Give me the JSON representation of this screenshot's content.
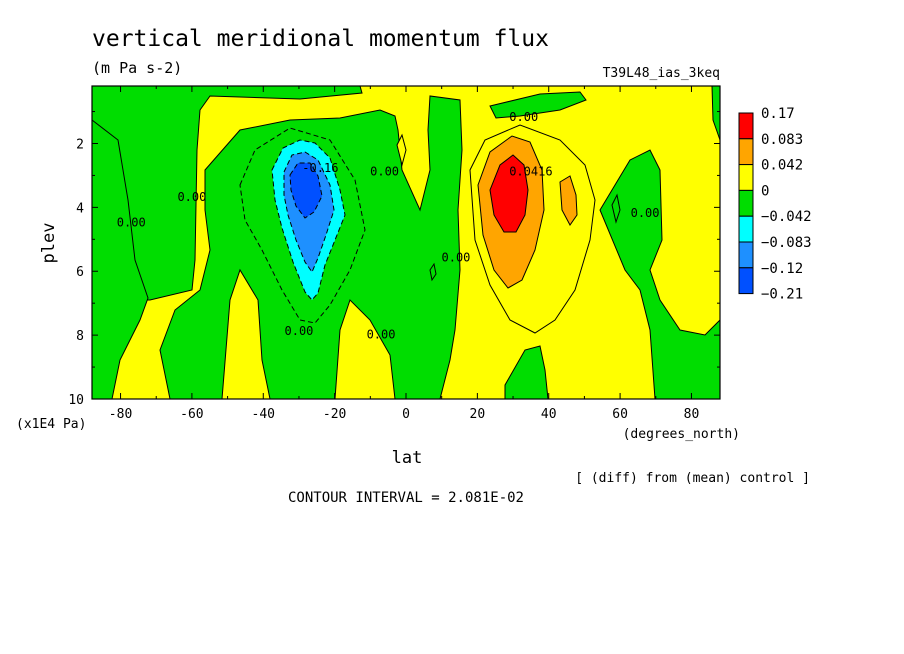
{
  "header": {
    "title": "vertical meridional momentum flux",
    "units": "(m Pa s-2)",
    "run": "T39L48_ias_3keq"
  },
  "footer": {
    "diff_note": "[ (diff) from (mean) control ]",
    "contour_interval": "CONTOUR INTERVAL = 2.081E-02"
  },
  "chart_data": {
    "type": "heatmap",
    "title": "vertical meridional momentum flux",
    "subtitle": "(m Pa s-2)",
    "xlabel": "lat",
    "xunits": "(degrees_north)",
    "ylabel": "plev",
    "yunits": "(x1E4 Pa)",
    "xlim": [
      -88,
      88
    ],
    "ylim": [
      10,
      0.2
    ],
    "xticks": [
      -80,
      -60,
      -40,
      -20,
      0,
      20,
      40,
      60,
      80
    ],
    "yticks": [
      2,
      4,
      6,
      8,
      10
    ],
    "colors": {
      "strong_pos": "#ff0000",
      "mid_pos": "#ffa500",
      "weak_pos": "#ffff00",
      "weak_neg": "#00dd00",
      "mid_neg": "#00ffff",
      "strong_neg": "#1e90ff",
      "very_strong_neg": "#0050ff"
    },
    "legend": {
      "placement": "right",
      "levels": [
        "0.17",
        "0.083",
        "0.042",
        "0",
        "−0.042",
        "−0.083",
        "−0.12",
        "−0.21"
      ],
      "colors": [
        "#ff0000",
        "#ffa500",
        "#ffff00",
        "#00dd00",
        "#00ffff",
        "#1e90ff",
        "#0050ff"
      ]
    },
    "contour_labels": [
      {
        "text": "0.00",
        "lat": 33,
        "plev": 1.3
      },
      {
        "text": "0.0416",
        "lat": 35,
        "plev": 3.0
      },
      {
        "text": "-0.16",
        "lat": -24,
        "plev": 2.9
      },
      {
        "text": "0.00",
        "lat": -6,
        "plev": 3.0
      },
      {
        "text": "0.00",
        "lat": -60,
        "plev": 3.8
      },
      {
        "text": "0.00",
        "lat": -77,
        "plev": 4.6
      },
      {
        "text": "0.00",
        "lat": 14,
        "plev": 5.7
      },
      {
        "text": "0.00",
        "lat": -30,
        "plev": 8.0
      },
      {
        "text": "0.00",
        "lat": -7,
        "plev": 8.1
      },
      {
        "text": "0.00",
        "lat": 67,
        "plev": 4.3
      }
    ],
    "features": [
      {
        "sign": "negative",
        "lat_center": -28,
        "plev_center": 3.5,
        "peak": -0.21
      },
      {
        "sign": "positive",
        "lat_center": 29,
        "plev_center": 3.6,
        "peak": 0.17
      },
      {
        "sign": "positive",
        "lat_center": 46,
        "plev_center": 4.0,
        "peak": 0.042
      }
    ]
  }
}
